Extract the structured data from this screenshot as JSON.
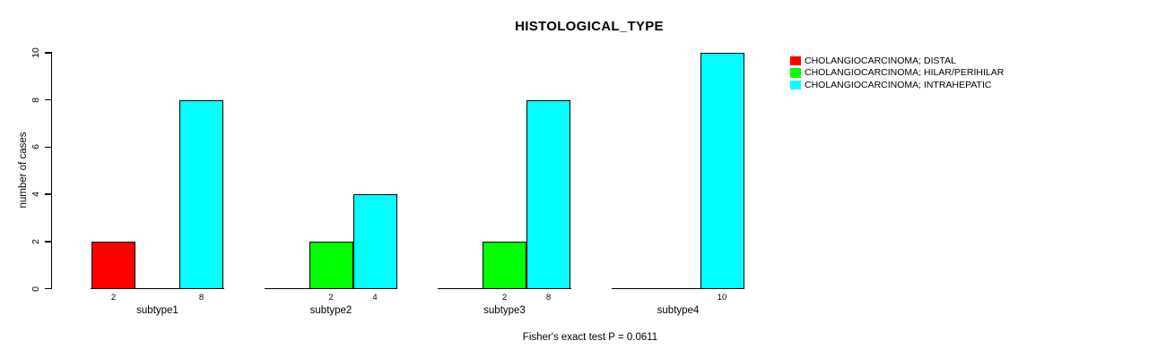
{
  "chart_data": {
    "type": "bar",
    "title": "HISTOLOGICAL_TYPE",
    "ylabel": "number of cases",
    "xlabel": "",
    "footnote": "Fisher's exact test P = 0.0611",
    "ylim": [
      0,
      10
    ],
    "yticks": [
      "0",
      "2",
      "4",
      "6",
      "8",
      "10"
    ],
    "categories": [
      "subtype1",
      "subtype2",
      "subtype3",
      "subtype4"
    ],
    "series": [
      {
        "name": "CHOLANGIOCARCINOMA; DISTAL",
        "color": "#ff0000",
        "values": [
          2,
          0,
          0,
          0
        ]
      },
      {
        "name": "CHOLANGIOCARCINOMA; HILAR/PERIHILAR",
        "color": "#00ff00",
        "values": [
          0,
          2,
          2,
          0
        ]
      },
      {
        "name": "CHOLANGIOCARCINOMA; INTRAHEPATIC",
        "color": "#00ffff",
        "values": [
          8,
          4,
          8,
          10
        ]
      }
    ],
    "show_value_labels": true,
    "legend_position": "right",
    "grid": false,
    "background": "#ffffff",
    "axis_color": "#000000",
    "bar_border_color": "#000000",
    "text_color": "#000000"
  }
}
